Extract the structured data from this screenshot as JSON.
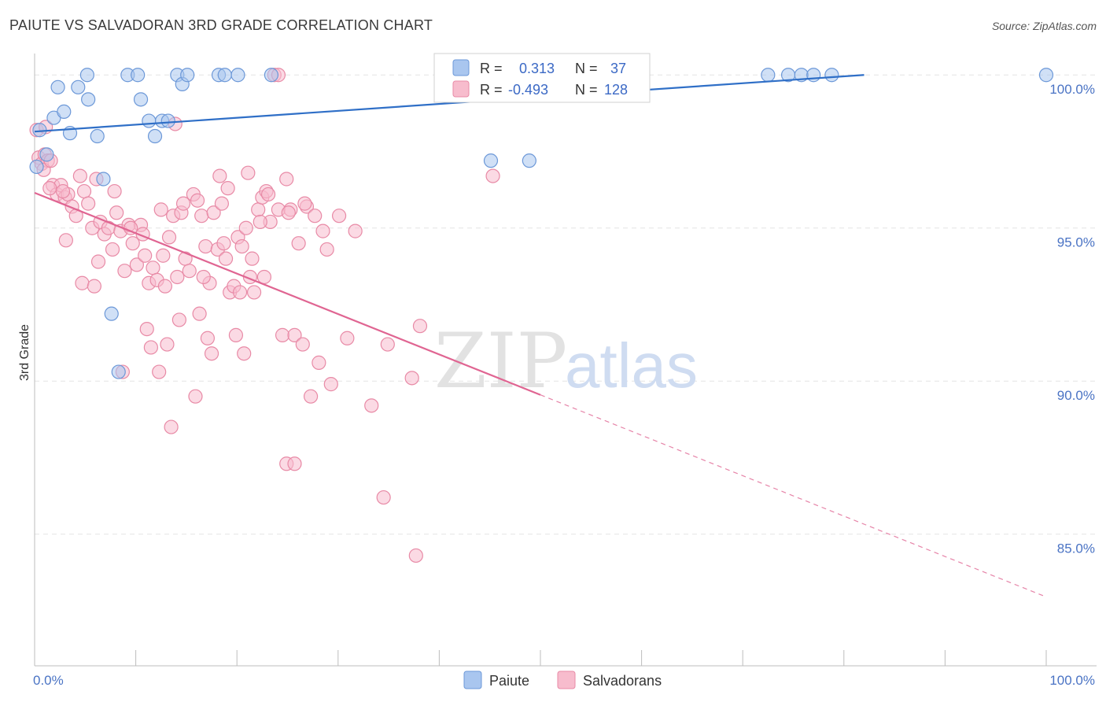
{
  "header": {
    "title": "PAIUTE VS SALVADORAN 3RD GRADE CORRELATION CHART",
    "source": "Source: ZipAtlas.com"
  },
  "watermark": {
    "zip": "ZIP",
    "atlas": "atlas"
  },
  "colors": {
    "paiute_fill": "#a9c6ef",
    "paiute_stroke": "#6c98d8",
    "paiute_line": "#2f6fc7",
    "salv_fill": "#f7bccd",
    "salv_stroke": "#e88aa6",
    "salv_line": "#e06592",
    "grid": "#e3e3e3",
    "axis_label": "#4a73c4"
  },
  "legend": {
    "r_label": "R =",
    "n_label": "N =",
    "items": [
      {
        "r": "0.313",
        "n": "37"
      },
      {
        "r": "-0.493",
        "n": "128"
      }
    ]
  },
  "chart_data": {
    "type": "scatter",
    "title": "PAIUTE VS SALVADORAN 3RD GRADE CORRELATION CHART",
    "xlabel": "",
    "ylabel": "3rd Grade",
    "xlim": [
      0,
      100
    ],
    "ylim": [
      80.7,
      100.7
    ],
    "y_ticks": [
      85,
      90,
      95,
      100
    ],
    "y_tick_labels": [
      "85.0%",
      "90.0%",
      "95.0%",
      "100.0%"
    ],
    "x_tick_labels": [
      "0.0%",
      "100.0%"
    ],
    "x_minor_ticks": [
      10,
      20,
      30,
      40,
      50,
      60,
      70,
      80,
      90
    ],
    "grid": true,
    "legend_position": "top-center",
    "series": [
      {
        "name": "Paiute",
        "r": 0.313,
        "n": 37,
        "trend": {
          "x": [
            0,
            82
          ],
          "y": [
            98.15,
            100.0
          ]
        },
        "points": [
          [
            0.2,
            97.0
          ],
          [
            0.5,
            98.2
          ],
          [
            1.2,
            97.4
          ],
          [
            1.9,
            98.6
          ],
          [
            2.3,
            99.6
          ],
          [
            2.9,
            98.8
          ],
          [
            3.5,
            98.1
          ],
          [
            4.3,
            99.6
          ],
          [
            5.3,
            99.2
          ],
          [
            5.2,
            100
          ],
          [
            6.2,
            98.0
          ],
          [
            6.8,
            96.6
          ],
          [
            7.6,
            92.2
          ],
          [
            8.3,
            90.3
          ],
          [
            9.2,
            100
          ],
          [
            10.2,
            100
          ],
          [
            10.5,
            99.2
          ],
          [
            11.3,
            98.5
          ],
          [
            11.9,
            98.0
          ],
          [
            12.6,
            98.5
          ],
          [
            13.2,
            98.5
          ],
          [
            14.1,
            100
          ],
          [
            14.6,
            99.7
          ],
          [
            15.1,
            100
          ],
          [
            18.2,
            100
          ],
          [
            18.8,
            100
          ],
          [
            20.1,
            100
          ],
          [
            23.4,
            100
          ],
          [
            45.1,
            97.2
          ],
          [
            48.9,
            97.2
          ],
          [
            72.5,
            100
          ],
          [
            74.5,
            100
          ],
          [
            75.8,
            100
          ],
          [
            77.0,
            100
          ],
          [
            78.8,
            100
          ],
          [
            100,
            100
          ],
          [
            43.8,
            100
          ]
        ]
      },
      {
        "name": "Salvadorans",
        "r": -0.493,
        "n": 128,
        "trend": {
          "x": [
            0,
            50
          ],
          "y": [
            96.15,
            89.55
          ]
        },
        "trend_dashed": {
          "x": [
            50,
            100
          ],
          "y": [
            89.55,
            82.95
          ]
        },
        "points": [
          [
            0.2,
            98.2
          ],
          [
            0.4,
            97.3
          ],
          [
            0.7,
            97.1
          ],
          [
            1.0,
            97.4
          ],
          [
            1.3,
            97.2
          ],
          [
            1.8,
            96.4
          ],
          [
            2.2,
            96.1
          ],
          [
            2.6,
            96.4
          ],
          [
            3.0,
            96.0
          ],
          [
            3.3,
            96.1
          ],
          [
            3.7,
            95.7
          ],
          [
            4.1,
            95.4
          ],
          [
            4.5,
            96.7
          ],
          [
            4.9,
            96.2
          ],
          [
            5.3,
            95.8
          ],
          [
            5.7,
            95.0
          ],
          [
            6.1,
            96.6
          ],
          [
            6.5,
            95.2
          ],
          [
            6.9,
            94.8
          ],
          [
            7.3,
            95.0
          ],
          [
            7.7,
            94.3
          ],
          [
            8.1,
            95.5
          ],
          [
            8.5,
            94.9
          ],
          [
            8.9,
            93.6
          ],
          [
            9.3,
            95.1
          ],
          [
            9.7,
            94.5
          ],
          [
            10.1,
            93.8
          ],
          [
            10.5,
            95.1
          ],
          [
            10.9,
            94.1
          ],
          [
            11.3,
            93.2
          ],
          [
            11.7,
            93.7
          ],
          [
            12.1,
            93.3
          ],
          [
            12.5,
            95.6
          ],
          [
            12.9,
            93.1
          ],
          [
            13.3,
            94.7
          ],
          [
            13.7,
            95.4
          ],
          [
            14.1,
            93.4
          ],
          [
            14.5,
            95.5
          ],
          [
            14.9,
            94.0
          ],
          [
            15.3,
            93.6
          ],
          [
            15.7,
            96.1
          ],
          [
            16.1,
            95.9
          ],
          [
            16.5,
            95.4
          ],
          [
            16.9,
            94.4
          ],
          [
            17.3,
            93.2
          ],
          [
            17.7,
            95.5
          ],
          [
            18.1,
            94.3
          ],
          [
            18.5,
            95.8
          ],
          [
            18.9,
            94.0
          ],
          [
            19.3,
            92.9
          ],
          [
            19.7,
            93.1
          ],
          [
            20.1,
            94.7
          ],
          [
            20.5,
            94.4
          ],
          [
            20.9,
            95.0
          ],
          [
            21.3,
            93.4
          ],
          [
            21.7,
            92.9
          ],
          [
            22.1,
            95.6
          ],
          [
            22.5,
            96.0
          ],
          [
            22.9,
            96.2
          ],
          [
            23.3,
            95.2
          ],
          [
            24.1,
            95.6
          ],
          [
            24.9,
            96.6
          ],
          [
            25.3,
            95.6
          ],
          [
            26.1,
            94.5
          ],
          [
            26.9,
            95.7
          ],
          [
            27.7,
            95.4
          ],
          [
            28.5,
            94.9
          ],
          [
            3.1,
            94.6
          ],
          [
            4.7,
            93.2
          ],
          [
            6.3,
            93.9
          ],
          [
            7.9,
            96.2
          ],
          [
            9.5,
            95.0
          ],
          [
            11.1,
            91.7
          ],
          [
            11.5,
            91.1
          ],
          [
            12.3,
            90.3
          ],
          [
            13.1,
            91.2
          ],
          [
            13.5,
            88.5
          ],
          [
            14.3,
            92.0
          ],
          [
            15.9,
            89.5
          ],
          [
            16.3,
            92.2
          ],
          [
            17.1,
            91.4
          ],
          [
            17.5,
            90.9
          ],
          [
            18.3,
            96.7
          ],
          [
            19.1,
            96.3
          ],
          [
            19.9,
            91.5
          ],
          [
            20.7,
            90.9
          ],
          [
            21.1,
            96.8
          ],
          [
            22.7,
            93.4
          ],
          [
            24.5,
            91.5
          ],
          [
            25.7,
            91.5
          ],
          [
            26.5,
            91.2
          ],
          [
            27.3,
            89.5
          ],
          [
            28.1,
            90.6
          ],
          [
            29.3,
            89.9
          ],
          [
            30.9,
            91.4
          ],
          [
            33.3,
            89.2
          ],
          [
            34.9,
            91.2
          ],
          [
            37.3,
            90.1
          ],
          [
            38.1,
            91.8
          ],
          [
            45.3,
            96.7
          ],
          [
            24.9,
            87.3
          ],
          [
            25.7,
            87.3
          ],
          [
            34.5,
            86.2
          ],
          [
            37.7,
            84.3
          ],
          [
            23.7,
            100
          ],
          [
            24.1,
            100
          ],
          [
            1.5,
            96.3
          ],
          [
            2.8,
            96.2
          ],
          [
            0.9,
            96.9
          ],
          [
            5.9,
            93.1
          ],
          [
            8.7,
            90.3
          ],
          [
            10.7,
            94.8
          ],
          [
            12.7,
            94.1
          ],
          [
            14.7,
            95.8
          ],
          [
            16.7,
            93.4
          ],
          [
            18.7,
            94.5
          ],
          [
            20.3,
            92.9
          ],
          [
            21.5,
            94.0
          ],
          [
            22.3,
            95.2
          ],
          [
            23.1,
            96.1
          ],
          [
            25.1,
            95.5
          ],
          [
            26.7,
            95.8
          ],
          [
            28.9,
            94.3
          ],
          [
            30.1,
            95.4
          ],
          [
            31.7,
            94.9
          ],
          [
            13.9,
            98.4
          ],
          [
            1.1,
            98.3
          ],
          [
            1.6,
            97.2
          ]
        ]
      }
    ]
  }
}
